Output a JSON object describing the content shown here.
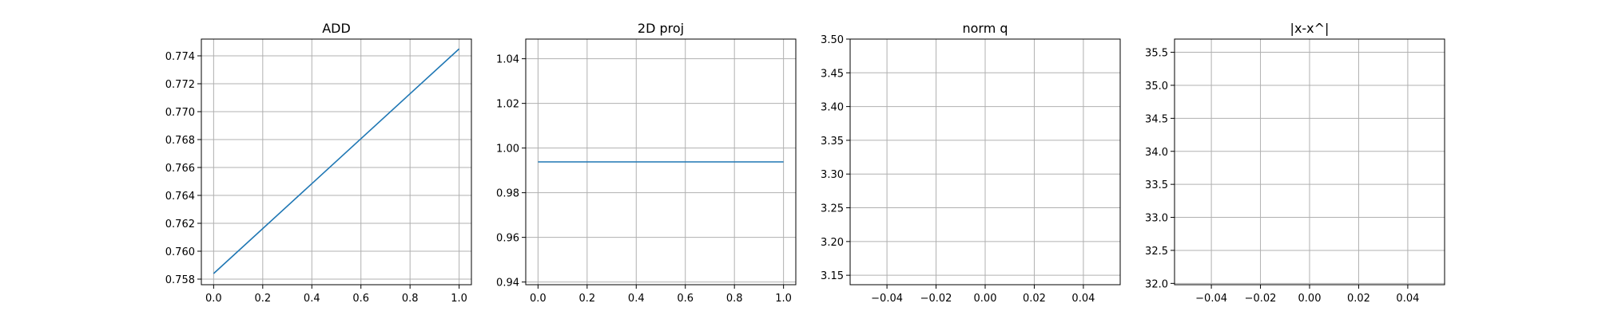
{
  "chart_data": [
    {
      "type": "line",
      "title": "ADD",
      "xlabel": "",
      "ylabel": "",
      "xlim": [
        -0.05,
        1.05
      ],
      "ylim": [
        0.7576,
        0.7752
      ],
      "xticks": [
        0.0,
        0.2,
        0.4,
        0.6,
        0.8,
        1.0
      ],
      "xtick_labels": [
        "0.0",
        "0.2",
        "0.4",
        "0.6",
        "0.8",
        "1.0"
      ],
      "yticks": [
        0.758,
        0.76,
        0.762,
        0.764,
        0.766,
        0.768,
        0.77,
        0.772,
        0.774
      ],
      "ytick_labels": [
        "0.758",
        "0.760",
        "0.762",
        "0.764",
        "0.766",
        "0.768",
        "0.770",
        "0.772",
        "0.774"
      ],
      "grid": true,
      "series": [
        {
          "color": "#1f77b4",
          "x": [
            0.0,
            1.0
          ],
          "y": [
            0.7584,
            0.7745
          ]
        }
      ]
    },
    {
      "type": "line",
      "title": "2D proj",
      "xlabel": "",
      "ylabel": "",
      "xlim": [
        -0.05,
        1.05
      ],
      "ylim": [
        0.9388,
        1.0488
      ],
      "xticks": [
        0.0,
        0.2,
        0.4,
        0.6,
        0.8,
        1.0
      ],
      "xtick_labels": [
        "0.0",
        "0.2",
        "0.4",
        "0.6",
        "0.8",
        "1.0"
      ],
      "yticks": [
        0.94,
        0.96,
        0.98,
        1.0,
        1.02,
        1.04
      ],
      "ytick_labels": [
        "0.94",
        "0.96",
        "0.98",
        "1.00",
        "1.02",
        "1.04"
      ],
      "grid": true,
      "series": [
        {
          "color": "#1f77b4",
          "x": [
            0.0,
            1.0
          ],
          "y": [
            0.9938,
            0.9938
          ]
        }
      ]
    },
    {
      "type": "line",
      "title": "norm q",
      "xlabel": "",
      "ylabel": "",
      "xlim": [
        -0.055,
        0.055
      ],
      "ylim": [
        3.136,
        3.5
      ],
      "xticks": [
        -0.04,
        -0.02,
        0.0,
        0.02,
        0.04
      ],
      "xtick_labels": [
        "−0.04",
        "−0.02",
        "0.00",
        "0.02",
        "0.04"
      ],
      "yticks": [
        3.15,
        3.2,
        3.25,
        3.3,
        3.35,
        3.4,
        3.45,
        3.5
      ],
      "ytick_labels": [
        "3.15",
        "3.20",
        "3.25",
        "3.30",
        "3.35",
        "3.40",
        "3.45",
        "3.50"
      ],
      "grid": true,
      "series": []
    },
    {
      "type": "line",
      "title": "|x-x^|",
      "xlabel": "",
      "ylabel": "",
      "xlim": [
        -0.055,
        0.055
      ],
      "ylim": [
        31.98,
        35.7
      ],
      "xticks": [
        -0.04,
        -0.02,
        0.0,
        0.02,
        0.04
      ],
      "xtick_labels": [
        "−0.04",
        "−0.02",
        "0.00",
        "0.02",
        "0.04"
      ],
      "yticks": [
        32.0,
        32.5,
        33.0,
        33.5,
        34.0,
        34.5,
        35.0,
        35.5
      ],
      "ytick_labels": [
        "32.0",
        "32.5",
        "33.0",
        "33.5",
        "34.0",
        "34.5",
        "35.0",
        "35.5"
      ],
      "grid": true,
      "series": []
    }
  ]
}
